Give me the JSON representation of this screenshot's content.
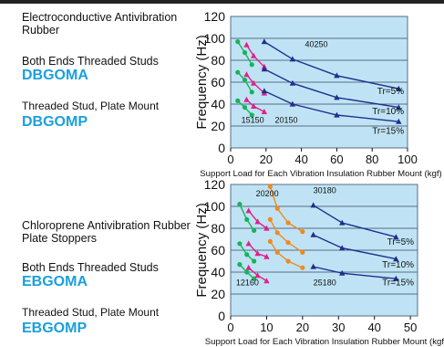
{
  "colors": {
    "model_text": "#1aa0dc",
    "plot_bg": "#bfe3f4",
    "grid": "#5a6d86",
    "green": "#19b25a",
    "magenta": "#e0218a",
    "orange": "#f08a1e",
    "navy": "#1f2f8f"
  },
  "sections": [
    {
      "title": "Electroconductive Antivibration Rubber",
      "mount_1": "Both Ends Threaded Studs",
      "model_1": "DBGOMA",
      "mount_2": "Threaded Stud, Plate Mount",
      "model_2": "DBGOMP"
    },
    {
      "title": "Chloroprene Antivibration Rubber Plate Stoppers",
      "mount_1": "Both Ends Threaded Studs",
      "model_1": "EBGOMA",
      "mount_2": "Threaded Stud, Plate Mount",
      "model_2": "EBGOMP"
    }
  ],
  "chart_data": [
    {
      "type": "line",
      "ylabel": "Frequency (Hz)",
      "xlabel": "Support Load for Each Vibration Insulation Rubber Mount (kgf)",
      "xlim": [
        0,
        100
      ],
      "ylim": [
        0,
        120
      ],
      "xticks": [
        0,
        20,
        40,
        60,
        80,
        100
      ],
      "yticks": [
        0,
        20,
        40,
        60,
        80,
        100,
        120
      ],
      "grid": true,
      "labels": [
        {
          "text": "40250",
          "x": 42,
          "y": 92
        },
        {
          "text": "15150",
          "x": 6,
          "y": 23
        },
        {
          "text": "20150",
          "x": 25,
          "y": 23
        },
        {
          "text": "Tr=5%",
          "x": 98,
          "y": 49
        },
        {
          "text": "Tr=10%",
          "x": 98,
          "y": 31
        },
        {
          "text": "Tr=15%",
          "x": 98,
          "y": 13
        }
      ],
      "series": [
        {
          "color": "green",
          "marker": "circle",
          "values": [
            [
              4,
              97
            ],
            [
              8,
              87
            ],
            [
              12,
              76
            ]
          ]
        },
        {
          "color": "green",
          "marker": "circle",
          "values": [
            [
              4,
              69
            ],
            [
              8,
              62
            ],
            [
              12,
              51
            ]
          ]
        },
        {
          "color": "green",
          "marker": "circle",
          "values": [
            [
              4,
              43
            ],
            [
              8,
              37
            ],
            [
              12,
              30
            ]
          ]
        },
        {
          "color": "magenta",
          "marker": "triangle",
          "values": [
            [
              9,
              94
            ],
            [
              13,
              84
            ],
            [
              19,
              74
            ]
          ]
        },
        {
          "color": "magenta",
          "marker": "triangle",
          "values": [
            [
              9,
              67
            ],
            [
              13,
              59
            ],
            [
              19,
              50
            ]
          ]
        },
        {
          "color": "magenta",
          "marker": "triangle",
          "values": [
            [
              9,
              44
            ],
            [
              13,
              38
            ],
            [
              19,
              33
            ]
          ]
        },
        {
          "color": "navy",
          "marker": "triangle",
          "values": [
            [
              19,
              97
            ],
            [
              35,
              81
            ],
            [
              60,
              66
            ],
            [
              95,
              54
            ]
          ]
        },
        {
          "color": "navy",
          "marker": "triangle",
          "values": [
            [
              19,
              72
            ],
            [
              35,
              59
            ],
            [
              60,
              46
            ],
            [
              95,
              37
            ]
          ]
        },
        {
          "color": "navy",
          "marker": "triangle",
          "values": [
            [
              19,
              52
            ],
            [
              35,
              40
            ],
            [
              60,
              30
            ],
            [
              95,
              24
            ]
          ]
        }
      ]
    },
    {
      "type": "line",
      "ylabel": "Frequency (Hz)",
      "xlabel": "Support Load for Each Vibration Insulation Rubber Mount (kgf)",
      "xlim": [
        0,
        52
      ],
      "ylim": [
        0,
        120
      ],
      "xticks": [
        0,
        10,
        20,
        30,
        40,
        50
      ],
      "yticks": [
        0,
        20,
        40,
        60,
        80,
        100,
        120
      ],
      "grid": true,
      "labels": [
        {
          "text": "20200",
          "x": 7,
          "y": 109
        },
        {
          "text": "30180",
          "x": 23,
          "y": 112
        },
        {
          "text": "12160",
          "x": 1.5,
          "y": 28
        },
        {
          "text": "25180",
          "x": 23,
          "y": 28
        },
        {
          "text": "Tr=5%",
          "x": 51,
          "y": 65
        },
        {
          "text": "Tr=10%",
          "x": 51,
          "y": 44
        },
        {
          "text": "Tr=15%",
          "x": 51,
          "y": 28
        }
      ],
      "series": [
        {
          "color": "green",
          "marker": "circle",
          "values": [
            [
              2.5,
              102
            ],
            [
              4.5,
              88
            ],
            [
              6.5,
              78
            ]
          ]
        },
        {
          "color": "green",
          "marker": "circle",
          "values": [
            [
              2.5,
              66
            ],
            [
              4.5,
              56
            ],
            [
              6.5,
              50
            ]
          ]
        },
        {
          "color": "green",
          "marker": "circle",
          "values": [
            [
              2.5,
              47
            ],
            [
              4.5,
              40
            ],
            [
              6.5,
              34
            ]
          ]
        },
        {
          "color": "magenta",
          "marker": "triangle",
          "values": [
            [
              5,
              96
            ],
            [
              7.5,
              86
            ],
            [
              10,
              80
            ]
          ]
        },
        {
          "color": "magenta",
          "marker": "triangle",
          "values": [
            [
              5,
              66
            ],
            [
              7.5,
              57
            ],
            [
              10,
              54
            ]
          ]
        },
        {
          "color": "magenta",
          "marker": "triangle",
          "values": [
            [
              5,
              44
            ],
            [
              7.5,
              37
            ],
            [
              10,
              32
            ]
          ]
        },
        {
          "color": "orange",
          "marker": "circle",
          "values": [
            [
              11,
              118
            ],
            [
              13,
              98
            ],
            [
              16,
              85
            ],
            [
              20,
              77
            ]
          ]
        },
        {
          "color": "orange",
          "marker": "circle",
          "values": [
            [
              11,
              88
            ],
            [
              13,
              76
            ],
            [
              16,
              67
            ],
            [
              20,
              58
            ]
          ]
        },
        {
          "color": "orange",
          "marker": "circle",
          "values": [
            [
              11,
              68
            ],
            [
              13,
              58
            ],
            [
              16,
              50
            ],
            [
              20,
              44
            ]
          ]
        },
        {
          "color": "navy",
          "marker": "triangle",
          "values": [
            [
              23,
              101
            ],
            [
              31,
              85
            ],
            [
              46,
              72
            ]
          ]
        },
        {
          "color": "navy",
          "marker": "triangle",
          "values": [
            [
              23,
              74
            ],
            [
              31,
              62
            ],
            [
              46,
              52
            ]
          ]
        },
        {
          "color": "navy",
          "marker": "triangle",
          "values": [
            [
              23,
              45
            ],
            [
              31,
              39
            ],
            [
              46,
              34
            ]
          ]
        }
      ]
    }
  ]
}
